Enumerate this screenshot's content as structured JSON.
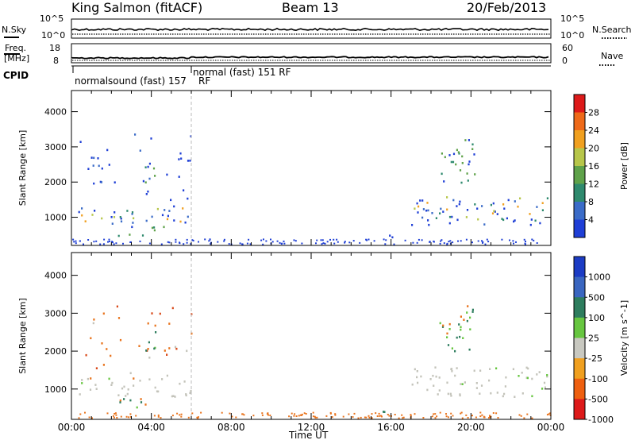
{
  "header": {
    "station": "King Salmon (fitACF)",
    "beam": "Beam 13",
    "date": "20/Feb/2013"
  },
  "meta_panels": {
    "nsky_label": "N.Sky",
    "nsearch_label": "N.Search",
    "nsky_ticks": [
      "10^5",
      "10^0"
    ],
    "nsearch_ticks": [
      "10^5",
      "10^0"
    ],
    "freq_label_1": "Freq.",
    "freq_label_2": "[MHz]",
    "freq_ticks": [
      "18",
      "8"
    ],
    "nave_label": "Nave",
    "nave_ticks": [
      "60",
      "0"
    ],
    "cpid_label": "CPID",
    "cpid_mode_1": "normalsound (fast) 157",
    "cpid_rf_1": "RF",
    "cpid_mode_2": "normal (fast) 151 RF"
  },
  "chart_data": [
    {
      "type": "heatmap",
      "name": "power",
      "ylabel": "Slant Range [km]",
      "yticks": [
        1000,
        2000,
        3000,
        4000
      ],
      "ylim": [
        200,
        4600
      ],
      "xticks": [
        "00:00",
        "04:00",
        "08:00",
        "12:00",
        "16:00",
        "20:00",
        "00:00"
      ],
      "xlim_hours": [
        0,
        24
      ],
      "colorbar": {
        "label": "Power [dB]",
        "ticks": [
          "4",
          "8",
          "12",
          "16",
          "20",
          "24",
          "28"
        ],
        "colors": [
          "#1f3fd6",
          "#3b6cc8",
          "#2f8a6e",
          "#5fa24a",
          "#b7c64a",
          "#f0a020",
          "#ee6a1a",
          "#dd1a1a"
        ]
      },
      "regions": [
        {
          "hours": [
            0.3,
            6.0
          ],
          "range_km": [
            800,
            1300
          ],
          "level": "high"
        },
        {
          "hours": [
            0.3,
            6.0
          ],
          "range_km": [
            1300,
            3400
          ],
          "level": "low"
        },
        {
          "hours": [
            3.5,
            4.3
          ],
          "range_km": [
            2000,
            2700
          ],
          "level": "mid"
        },
        {
          "hours": [
            2.3,
            4.8
          ],
          "range_km": [
            500,
            800
          ],
          "level": "mid"
        },
        {
          "hours": [
            15.5,
            16.5
          ],
          "range_km": [
            400,
            550
          ],
          "level": "mid"
        },
        {
          "hours": [
            17.0,
            24.0
          ],
          "range_km": [
            800,
            1600
          ],
          "level": "high"
        },
        {
          "hours": [
            18.4,
            20.2
          ],
          "range_km": [
            2000,
            3300
          ],
          "level": "mid"
        }
      ]
    },
    {
      "type": "heatmap",
      "name": "velocity",
      "ylabel": "Slant Range [km]",
      "yticks": [
        1000,
        2000,
        3000,
        4000
      ],
      "ylim": [
        200,
        4600
      ],
      "xticks": [
        "00:00",
        "04:00",
        "08:00",
        "12:00",
        "16:00",
        "20:00",
        "00:00"
      ],
      "xlim_hours": [
        0,
        24
      ],
      "xlabel": "Time UT",
      "colorbar": {
        "label": "Velocity [m s^-1]",
        "ticks": [
          "1000",
          "500",
          "100",
          "25",
          "-25",
          "-100",
          "-500",
          "-1000"
        ],
        "colors": [
          "#1c3cc4",
          "#3a66c0",
          "#2e7d5e",
          "#67c640",
          "#c8c8c0",
          "#f0a020",
          "#ee6010",
          "#dd1a1a"
        ]
      }
    }
  ],
  "colors": {
    "gray_ground": "#c3c3ba",
    "orange": "#e8731c",
    "green_dark": "#2e7d5e",
    "green_light": "#67c640"
  }
}
